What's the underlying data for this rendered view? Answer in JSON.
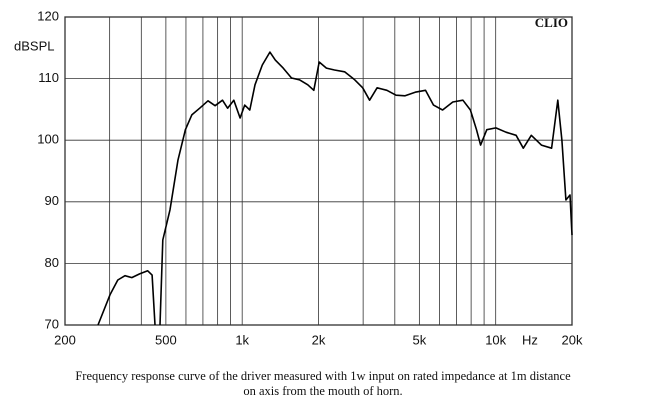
{
  "chart_data": {
    "type": "line",
    "xscale": "log",
    "y_label": "dBSPL",
    "x_label": "Hz",
    "watermark": "CLIO",
    "caption": [
      "Frequency response curve of the driver measured with 1w input on rated impedance at 1m distance",
      "on axis from the mouth of horn."
    ],
    "xlim": [
      200,
      20000
    ],
    "ylim": [
      70,
      120
    ],
    "xticks": [
      200,
      500,
      {
        "value": 1000,
        "label": "1k"
      },
      {
        "value": 2000,
        "label": "2k"
      },
      {
        "value": 5000,
        "label": "5k"
      },
      {
        "value": 10000,
        "label": "10k"
      },
      {
        "value": 20000,
        "label": "20k"
      }
    ],
    "xminor": [
      300,
      400,
      600,
      700,
      800,
      900,
      3000,
      4000,
      6000,
      7000,
      8000,
      9000
    ],
    "yticks": [
      70,
      80,
      90,
      100,
      110,
      120
    ],
    "grid": true,
    "x": [
      270,
      301,
      323,
      345,
      367,
      394,
      424,
      441,
      453,
      null,
      474,
      486,
      519,
      558,
      597,
      633,
      680,
      733,
      782,
      836,
      876,
      927,
      981,
      1023,
      1072,
      1123,
      1200,
      1286,
      1351,
      1452,
      1565,
      1683,
      1814,
      1916,
      2012,
      2148,
      2312,
      2535,
      2778,
      2989,
      3180,
      3407,
      3724,
      4045,
      4393,
      4815,
      5285,
      5685,
      6175,
      6772,
      7424,
      7948,
      8400,
      8721,
      9222,
      10018,
      10980,
      12040,
      12850,
      13820,
      15150,
      16620,
      17580,
      18240,
      18930,
      19640,
      20000
    ],
    "series": [
      {
        "color": "#000000",
        "values": [
          70,
          74.9,
          77.3,
          78,
          77.7,
          78.3,
          78.8,
          78.1,
          70,
          null,
          70,
          83.8,
          88.7,
          96.8,
          101.7,
          104.1,
          105.2,
          106.4,
          105.6,
          106.5,
          105.2,
          106.5,
          103.6,
          105.7,
          104.9,
          109,
          112.2,
          114.3,
          113,
          111.7,
          110.1,
          109.8,
          109,
          108.1,
          112.7,
          111.7,
          111.4,
          111.1,
          109.8,
          108.5,
          106.5,
          108.5,
          108.1,
          107.3,
          107.2,
          107.8,
          108.1,
          105.7,
          104.9,
          106.2,
          106.5,
          104.9,
          101.7,
          99.2,
          101.7,
          102,
          101.3,
          100.8,
          98.7,
          100.8,
          99.2,
          98.7,
          106.5,
          100,
          90.3,
          91.1,
          84.6
        ]
      }
    ]
  }
}
